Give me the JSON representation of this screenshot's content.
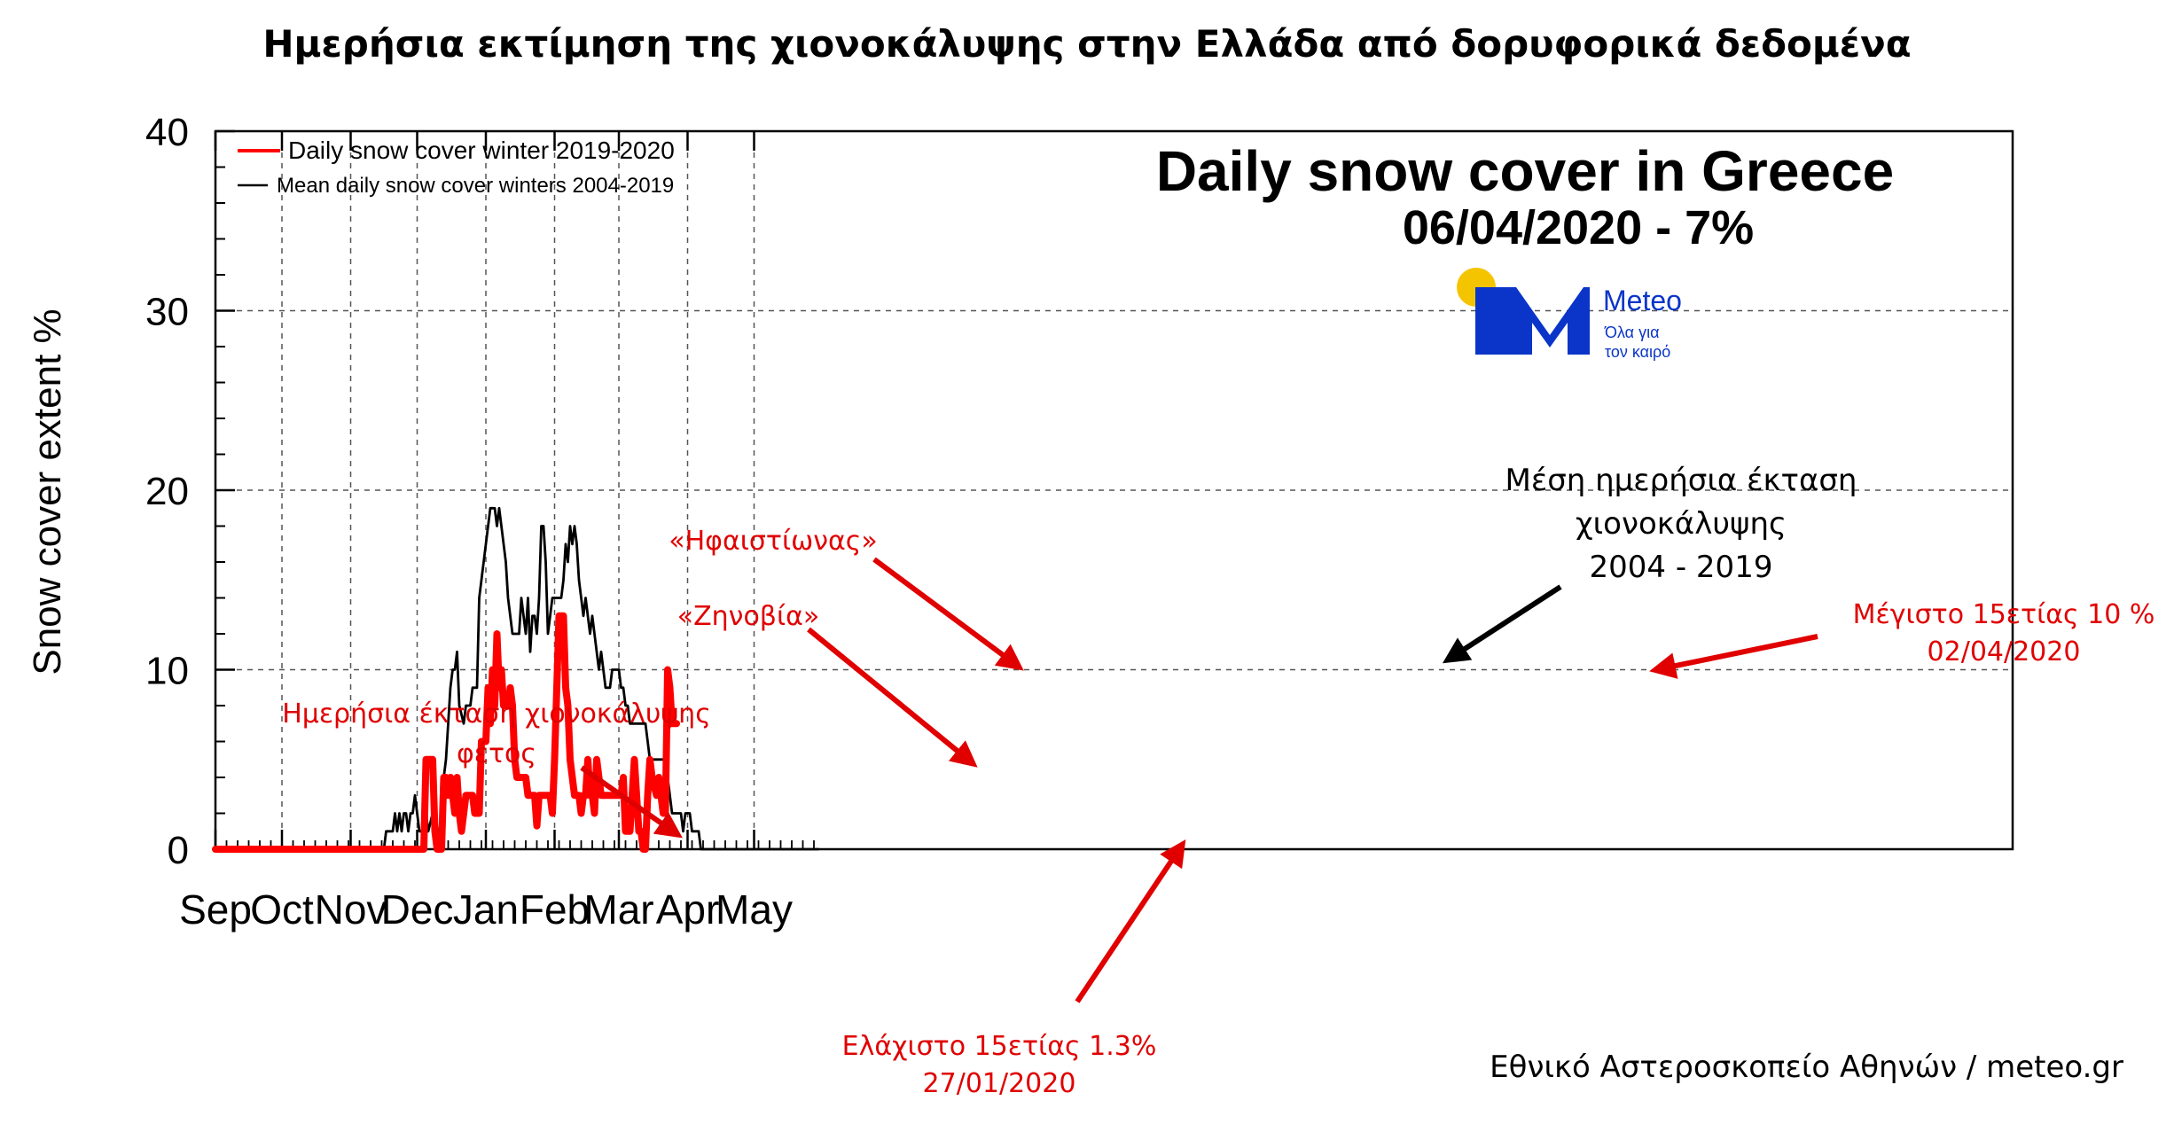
{
  "header": {
    "title": "Ημερήσια εκτίμηση της χιονοκάλυψης στην Ελλάδα από δορυφορικά δεδομένα"
  },
  "chart_data": {
    "type": "line",
    "title": "Daily snow cover in Greece",
    "subtitle": "06/04/2020 - 7%",
    "xlabel": "",
    "ylabel": "Snow cover extent %",
    "ylim": [
      0,
      40
    ],
    "yticks": [
      0,
      10,
      20,
      30,
      40
    ],
    "x_unit": "day of season (1 Sep = 0)",
    "xlim": [
      0,
      272
    ],
    "xticks": [
      {
        "label": "Sep",
        "day": 0
      },
      {
        "label": "Oct",
        "day": 30
      },
      {
        "label": "Nov",
        "day": 61
      },
      {
        "label": "Dec",
        "day": 91
      },
      {
        "label": "Jan",
        "day": 122
      },
      {
        "label": "Feb",
        "day": 153
      },
      {
        "label": "Mar",
        "day": 182
      },
      {
        "label": "Apr",
        "day": 213
      },
      {
        "label": "May",
        "day": 243
      }
    ],
    "grid": true,
    "legend_position": "top-left",
    "series": [
      {
        "name": "Daily snow cover winter 2019-2020",
        "color": "#ff0000",
        "points": [
          [
            0,
            0
          ],
          [
            94,
            0
          ],
          [
            95,
            5
          ],
          [
            98,
            5
          ],
          [
            99,
            1
          ],
          [
            100,
            0
          ],
          [
            102,
            0
          ],
          [
            103,
            4
          ],
          [
            104,
            4
          ],
          [
            105,
            3
          ],
          [
            106,
            4
          ],
          [
            107,
            3
          ],
          [
            108,
            2
          ],
          [
            109,
            4
          ],
          [
            110,
            2
          ],
          [
            111,
            1
          ],
          [
            113,
            3
          ],
          [
            116,
            3
          ],
          [
            117,
            2
          ],
          [
            119,
            2
          ],
          [
            120,
            6
          ],
          [
            122,
            6
          ],
          [
            123,
            9
          ],
          [
            124,
            7
          ],
          [
            125,
            10
          ],
          [
            126,
            8
          ],
          [
            127,
            12
          ],
          [
            128,
            9
          ],
          [
            129,
            10
          ],
          [
            130,
            8
          ],
          [
            132,
            8
          ],
          [
            133,
            9
          ],
          [
            134,
            8
          ],
          [
            135,
            5
          ],
          [
            136,
            4
          ],
          [
            140,
            4
          ],
          [
            141,
            3
          ],
          [
            144,
            3
          ],
          [
            145,
            1.3
          ],
          [
            146,
            3
          ],
          [
            151,
            3
          ],
          [
            152,
            2
          ],
          [
            153,
            5
          ],
          [
            155,
            13
          ],
          [
            157,
            13
          ],
          [
            158,
            9
          ],
          [
            159,
            8
          ],
          [
            160,
            5
          ],
          [
            162,
            3
          ],
          [
            164,
            3
          ],
          [
            165,
            2
          ],
          [
            166,
            3
          ],
          [
            167,
            3
          ],
          [
            168,
            5
          ],
          [
            169,
            3
          ],
          [
            170,
            3
          ],
          [
            171,
            2
          ],
          [
            172,
            5
          ],
          [
            173,
            4
          ],
          [
            174,
            3
          ],
          [
            183,
            3
          ],
          [
            184,
            4
          ],
          [
            185,
            1
          ],
          [
            187,
            1
          ],
          [
            188,
            3
          ],
          [
            189,
            5
          ],
          [
            190,
            3
          ],
          [
            191,
            1
          ],
          [
            192,
            1
          ],
          [
            193,
            0
          ],
          [
            194,
            0
          ],
          [
            195,
            3
          ],
          [
            196,
            5
          ],
          [
            197,
            4
          ],
          [
            199,
            3
          ],
          [
            200,
            4
          ],
          [
            201,
            3
          ],
          [
            202,
            2
          ],
          [
            203,
            2
          ],
          [
            204,
            10
          ],
          [
            205,
            9
          ],
          [
            206,
            7
          ],
          [
            208,
            7
          ]
        ]
      },
      {
        "name": "Mean daily snow cover winters 2004-2019",
        "color": "#000000",
        "points": [
          [
            0,
            0
          ],
          [
            76,
            0
          ],
          [
            77,
            1
          ],
          [
            80,
            1
          ],
          [
            81,
            2
          ],
          [
            82,
            1
          ],
          [
            83,
            2
          ],
          [
            84,
            1
          ],
          [
            85,
            2
          ],
          [
            86,
            2
          ],
          [
            87,
            1
          ],
          [
            88,
            2
          ],
          [
            89,
            2
          ],
          [
            90,
            3
          ],
          [
            91,
            2
          ],
          [
            92,
            1
          ],
          [
            94,
            1
          ],
          [
            95,
            2
          ],
          [
            96,
            1
          ],
          [
            98,
            2
          ],
          [
            99,
            1
          ],
          [
            101,
            1
          ],
          [
            102,
            2
          ],
          [
            103,
            4
          ],
          [
            104,
            5
          ],
          [
            105,
            7
          ],
          [
            106,
            9
          ],
          [
            107,
            10
          ],
          [
            108,
            10
          ],
          [
            109,
            11
          ],
          [
            110,
            8
          ],
          [
            112,
            7
          ],
          [
            113,
            8
          ],
          [
            115,
            8
          ],
          [
            116,
            9
          ],
          [
            118,
            9
          ],
          [
            119,
            14
          ],
          [
            120,
            15
          ],
          [
            121,
            16
          ],
          [
            123,
            18
          ],
          [
            124,
            19
          ],
          [
            126,
            19
          ],
          [
            127,
            18
          ],
          [
            128,
            19
          ],
          [
            129,
            18
          ],
          [
            131,
            16
          ],
          [
            132,
            14
          ],
          [
            133,
            13
          ],
          [
            134,
            12
          ],
          [
            137,
            12
          ],
          [
            138,
            14
          ],
          [
            139,
            13
          ],
          [
            140,
            12
          ],
          [
            141,
            14
          ],
          [
            142,
            11
          ],
          [
            143,
            13
          ],
          [
            144,
            13
          ],
          [
            145,
            12
          ],
          [
            146,
            14
          ],
          [
            147,
            18
          ],
          [
            148,
            18
          ],
          [
            149,
            16
          ],
          [
            150,
            12
          ],
          [
            151,
            13
          ],
          [
            152,
            14
          ],
          [
            156,
            14
          ],
          [
            157,
            15
          ],
          [
            158,
            17
          ],
          [
            159,
            16
          ],
          [
            160,
            18
          ],
          [
            161,
            17
          ],
          [
            162,
            18
          ],
          [
            163,
            17
          ],
          [
            164,
            15
          ],
          [
            165,
            14
          ],
          [
            166,
            13
          ],
          [
            167,
            14
          ],
          [
            168,
            13
          ],
          [
            169,
            12
          ],
          [
            170,
            13
          ],
          [
            171,
            12
          ],
          [
            172,
            11
          ],
          [
            173,
            10
          ],
          [
            174,
            11
          ],
          [
            175,
            10
          ],
          [
            176,
            9
          ],
          [
            178,
            9
          ],
          [
            179,
            10
          ],
          [
            182,
            10
          ],
          [
            183,
            9
          ],
          [
            184,
            9
          ],
          [
            185,
            8
          ],
          [
            186,
            8
          ],
          [
            187,
            7
          ],
          [
            194,
            7
          ],
          [
            195,
            6
          ],
          [
            196,
            5
          ],
          [
            203,
            5
          ],
          [
            204,
            4
          ],
          [
            205,
            3
          ],
          [
            206,
            2
          ],
          [
            210,
            2
          ],
          [
            211,
            1
          ],
          [
            212,
            2
          ],
          [
            214,
            2
          ],
          [
            215,
            1
          ],
          [
            218,
            1
          ],
          [
            219,
            0
          ],
          [
            272,
            0
          ]
        ]
      }
    ],
    "annotations": [
      {
        "name": "this-year",
        "lines": [
          "Ημερήσια έκταση χιονοκάλυψης",
          "φέτος"
        ]
      },
      {
        "name": "zenovia",
        "lines": [
          "«Ζηνοβία»"
        ]
      },
      {
        "name": "hfaistionas",
        "lines": [
          "«Ηφαιστίωνας»"
        ]
      },
      {
        "name": "minimum",
        "lines": [
          "Ελάχιστο 15ετίας 1.3%",
          "27/01/2020"
        ]
      },
      {
        "name": "mean",
        "lines": [
          "Μέση ημερήσια έκταση",
          "χιονοκάλυψης",
          "2004 - 2019"
        ]
      },
      {
        "name": "maximum",
        "lines": [
          "Μέγιστο 15ετίας 10 %",
          "02/04/2020"
        ]
      }
    ]
  },
  "logo": {
    "brand": "Meteo",
    "tagline_1": "Όλα για",
    "tagline_2": "τον καιρό",
    "sun_color": "#f5c400",
    "mark_color": "#0a35c8"
  },
  "footer": {
    "credit": "Εθνικό Αστεροσκοπείο Αθηνών / meteo.gr"
  },
  "colors": {
    "annotation": "#e00000",
    "grid": "#555555"
  }
}
